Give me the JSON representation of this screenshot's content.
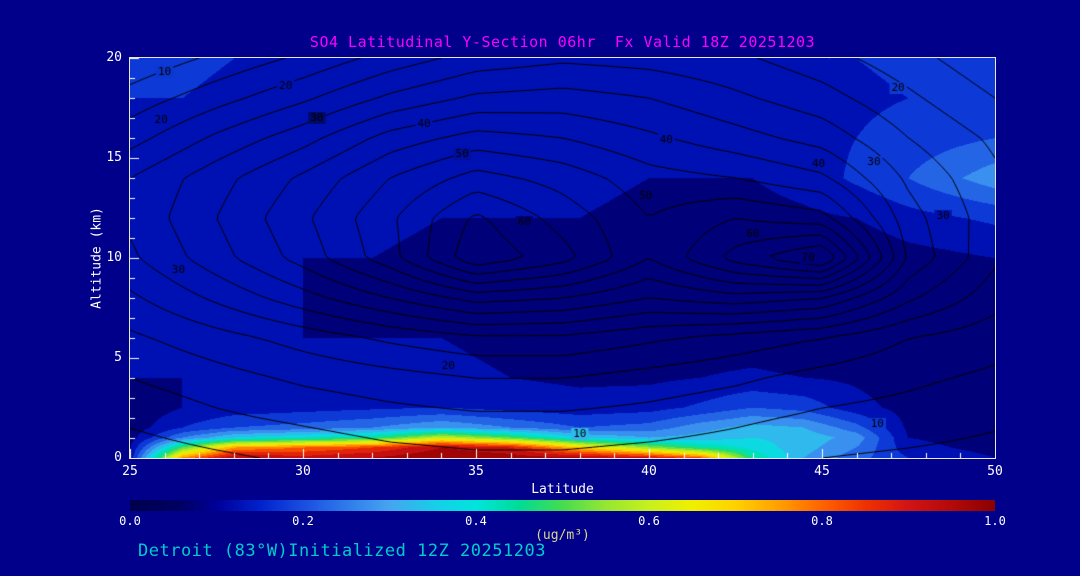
{
  "page": {
    "title_color": "#FF00FF",
    "footer_color": "#00CCCC",
    "axis_text_color": "#FFFFFF",
    "units_label_color": "#D8D890",
    "background_color": "#00008B",
    "footer": "Detroit (83°W)Initialized 12Z 20251203"
  },
  "chart_data": {
    "type": "heatmap",
    "title": "SO4 Latitudinal Y-Section 06hr  Fx Valid 18Z 20251203",
    "xlabel": "Latitude",
    "ylabel": "Altitude (km)",
    "x_range": [
      25,
      50
    ],
    "y_range": [
      0,
      20
    ],
    "x_ticks": [
      25,
      30,
      35,
      40,
      45,
      50
    ],
    "y_ticks": [
      0,
      5,
      10,
      15,
      20
    ],
    "x_minor_step": 1,
    "y_minor_step": 1,
    "grid": false,
    "colorbar": {
      "min": 0.0,
      "max": 1.0,
      "ticks": [
        "0.0",
        "0.2",
        "0.4",
        "0.6",
        "0.8",
        "1.0"
      ],
      "label": "(ug/m³)"
    },
    "colormap": [
      [
        0.0,
        "#00004B"
      ],
      [
        0.06,
        "#000066"
      ],
      [
        0.1,
        "#000099"
      ],
      [
        0.15,
        "#0022CC"
      ],
      [
        0.2,
        "#1A4FE0"
      ],
      [
        0.25,
        "#2E7BEB"
      ],
      [
        0.3,
        "#46A5F0"
      ],
      [
        0.35,
        "#19CDE8"
      ],
      [
        0.4,
        "#00E5DC"
      ],
      [
        0.45,
        "#00DC96"
      ],
      [
        0.5,
        "#46DC50"
      ],
      [
        0.55,
        "#96E632"
      ],
      [
        0.6,
        "#C8F01E"
      ],
      [
        0.65,
        "#F0F000"
      ],
      [
        0.7,
        "#FFD200"
      ],
      [
        0.75,
        "#FFA000"
      ],
      [
        0.8,
        "#FF6400"
      ],
      [
        0.85,
        "#F03200"
      ],
      [
        0.9,
        "#D21414"
      ],
      [
        0.95,
        "#B40A0A"
      ],
      [
        1.0,
        "#8C0000"
      ]
    ],
    "fill": {
      "x": [
        25,
        26.5,
        28,
        30,
        32,
        34,
        36,
        38,
        40,
        41.5,
        43,
        44.5,
        46,
        47.5,
        50
      ],
      "y": [
        0,
        0.5,
        1,
        1.5,
        2.5,
        4,
        6,
        8,
        10,
        12,
        14,
        16,
        18,
        20
      ],
      "values": [
        [
          0.12,
          0.75,
          0.95,
          0.92,
          0.95,
          1.0,
          0.98,
          0.95,
          0.9,
          0.8,
          0.45,
          0.3,
          0.22,
          0.15,
          0.1
        ],
        [
          0.1,
          0.5,
          0.75,
          0.8,
          0.85,
          0.95,
          0.9,
          0.7,
          0.55,
          0.45,
          0.38,
          0.32,
          0.25,
          0.12,
          0.08
        ],
        [
          0.08,
          0.25,
          0.35,
          0.4,
          0.45,
          0.6,
          0.5,
          0.35,
          0.3,
          0.32,
          0.35,
          0.33,
          0.28,
          0.1,
          0.07
        ],
        [
          0.07,
          0.15,
          0.2,
          0.22,
          0.25,
          0.3,
          0.25,
          0.2,
          0.22,
          0.28,
          0.32,
          0.3,
          0.22,
          0.09,
          0.06
        ],
        [
          0.06,
          0.1,
          0.12,
          0.13,
          0.14,
          0.15,
          0.13,
          0.12,
          0.13,
          0.16,
          0.2,
          0.18,
          0.12,
          0.08,
          0.06
        ],
        [
          0.1,
          0.1,
          0.1,
          0.1,
          0.11,
          0.11,
          0.1,
          0.09,
          0.09,
          0.1,
          0.11,
          0.1,
          0.09,
          0.07,
          0.06
        ],
        [
          0.12,
          0.11,
          0.1,
          0.1,
          0.1,
          0.1,
          0.09,
          0.08,
          0.07,
          0.07,
          0.07,
          0.06,
          0.06,
          0.06,
          0.07
        ],
        [
          0.12,
          0.11,
          0.1,
          0.1,
          0.09,
          0.09,
          0.09,
          0.08,
          0.06,
          0.05,
          0.05,
          0.05,
          0.05,
          0.06,
          0.08
        ],
        [
          0.12,
          0.11,
          0.11,
          0.1,
          0.1,
          0.09,
          0.09,
          0.08,
          0.07,
          0.06,
          0.05,
          0.05,
          0.06,
          0.08,
          0.1
        ],
        [
          0.13,
          0.12,
          0.12,
          0.11,
          0.11,
          0.1,
          0.1,
          0.1,
          0.09,
          0.08,
          0.08,
          0.09,
          0.1,
          0.13,
          0.16
        ],
        [
          0.14,
          0.13,
          0.13,
          0.12,
          0.12,
          0.12,
          0.11,
          0.11,
          0.1,
          0.1,
          0.1,
          0.12,
          0.16,
          0.2,
          0.28
        ],
        [
          0.15,
          0.14,
          0.14,
          0.13,
          0.13,
          0.13,
          0.12,
          0.12,
          0.12,
          0.12,
          0.12,
          0.13,
          0.15,
          0.17,
          0.2
        ],
        [
          0.15,
          0.15,
          0.14,
          0.14,
          0.14,
          0.14,
          0.13,
          0.13,
          0.13,
          0.13,
          0.13,
          0.14,
          0.14,
          0.15,
          0.17
        ],
        [
          0.16,
          0.16,
          0.15,
          0.15,
          0.15,
          0.15,
          0.14,
          0.14,
          0.14,
          0.14,
          0.14,
          0.15,
          0.15,
          0.16,
          0.18
        ]
      ]
    },
    "contours": {
      "x": [
        25,
        27.5,
        30,
        32.5,
        35,
        37.5,
        40,
        42.5,
        45,
        47.5,
        50
      ],
      "y": [
        0,
        2,
        4,
        6,
        8,
        10,
        12,
        14,
        16,
        18,
        20
      ],
      "values": [
        [
          2,
          4,
          6,
          8,
          9,
          9,
          8,
          7,
          5,
          4,
          3
        ],
        [
          6,
          9,
          11,
          13,
          14,
          14,
          13,
          11,
          9,
          8,
          6
        ],
        [
          10,
          13,
          16,
          18,
          20,
          20,
          18,
          16,
          13,
          11,
          9
        ],
        [
          14,
          18,
          22,
          26,
          29,
          29,
          26,
          23,
          20,
          15,
          12
        ],
        [
          19,
          26,
          33,
          40,
          47,
          45,
          40,
          43,
          40,
          26,
          17
        ],
        [
          24,
          33,
          42,
          53,
          69,
          62,
          50,
          62,
          71,
          34,
          21
        ],
        [
          26,
          35,
          44,
          54,
          66,
          58,
          50,
          55,
          52,
          32,
          22
        ],
        [
          25,
          33,
          41,
          50,
          57,
          53,
          47,
          45,
          41,
          29,
          21
        ],
        [
          18,
          26,
          33,
          42,
          47,
          45,
          41,
          37,
          33,
          25,
          19
        ],
        [
          12,
          18,
          24,
          31,
          36,
          37,
          35,
          31,
          27,
          21,
          15
        ],
        [
          6,
          11,
          16,
          22,
          27,
          29,
          28,
          26,
          22,
          17,
          11
        ]
      ],
      "levels": [
        5,
        10,
        15,
        20,
        25,
        30,
        35,
        40,
        45,
        50,
        55,
        60,
        65,
        70
      ],
      "labels": [
        {
          "text": "10",
          "lat": 26.0,
          "alt": 19.3
        },
        {
          "text": "20",
          "lat": 29.5,
          "alt": 18.6
        },
        {
          "text": "30",
          "lat": 30.4,
          "alt": 17.0
        },
        {
          "text": "40",
          "lat": 33.5,
          "alt": 16.7
        },
        {
          "text": "50",
          "lat": 34.6,
          "alt": 15.2
        },
        {
          "text": "60",
          "lat": 36.4,
          "alt": 11.8
        },
        {
          "text": "50",
          "lat": 39.9,
          "alt": 13.1
        },
        {
          "text": "40",
          "lat": 40.5,
          "alt": 15.9
        },
        {
          "text": "20",
          "lat": 47.2,
          "alt": 18.5
        },
        {
          "text": "30",
          "lat": 48.5,
          "alt": 12.1
        },
        {
          "text": "40",
          "lat": 44.9,
          "alt": 14.7
        },
        {
          "text": "30",
          "lat": 46.5,
          "alt": 14.8
        },
        {
          "text": "60",
          "lat": 43.0,
          "alt": 11.2
        },
        {
          "text": "70",
          "lat": 44.6,
          "alt": 10.0
        },
        {
          "text": "20",
          "lat": 25.9,
          "alt": 16.9
        },
        {
          "text": "30",
          "lat": 26.4,
          "alt": 9.4
        },
        {
          "text": "20",
          "lat": 34.2,
          "alt": 4.6
        },
        {
          "text": "10",
          "lat": 38.0,
          "alt": 1.2
        },
        {
          "text": "10",
          "lat": 46.6,
          "alt": 1.7
        }
      ]
    }
  }
}
